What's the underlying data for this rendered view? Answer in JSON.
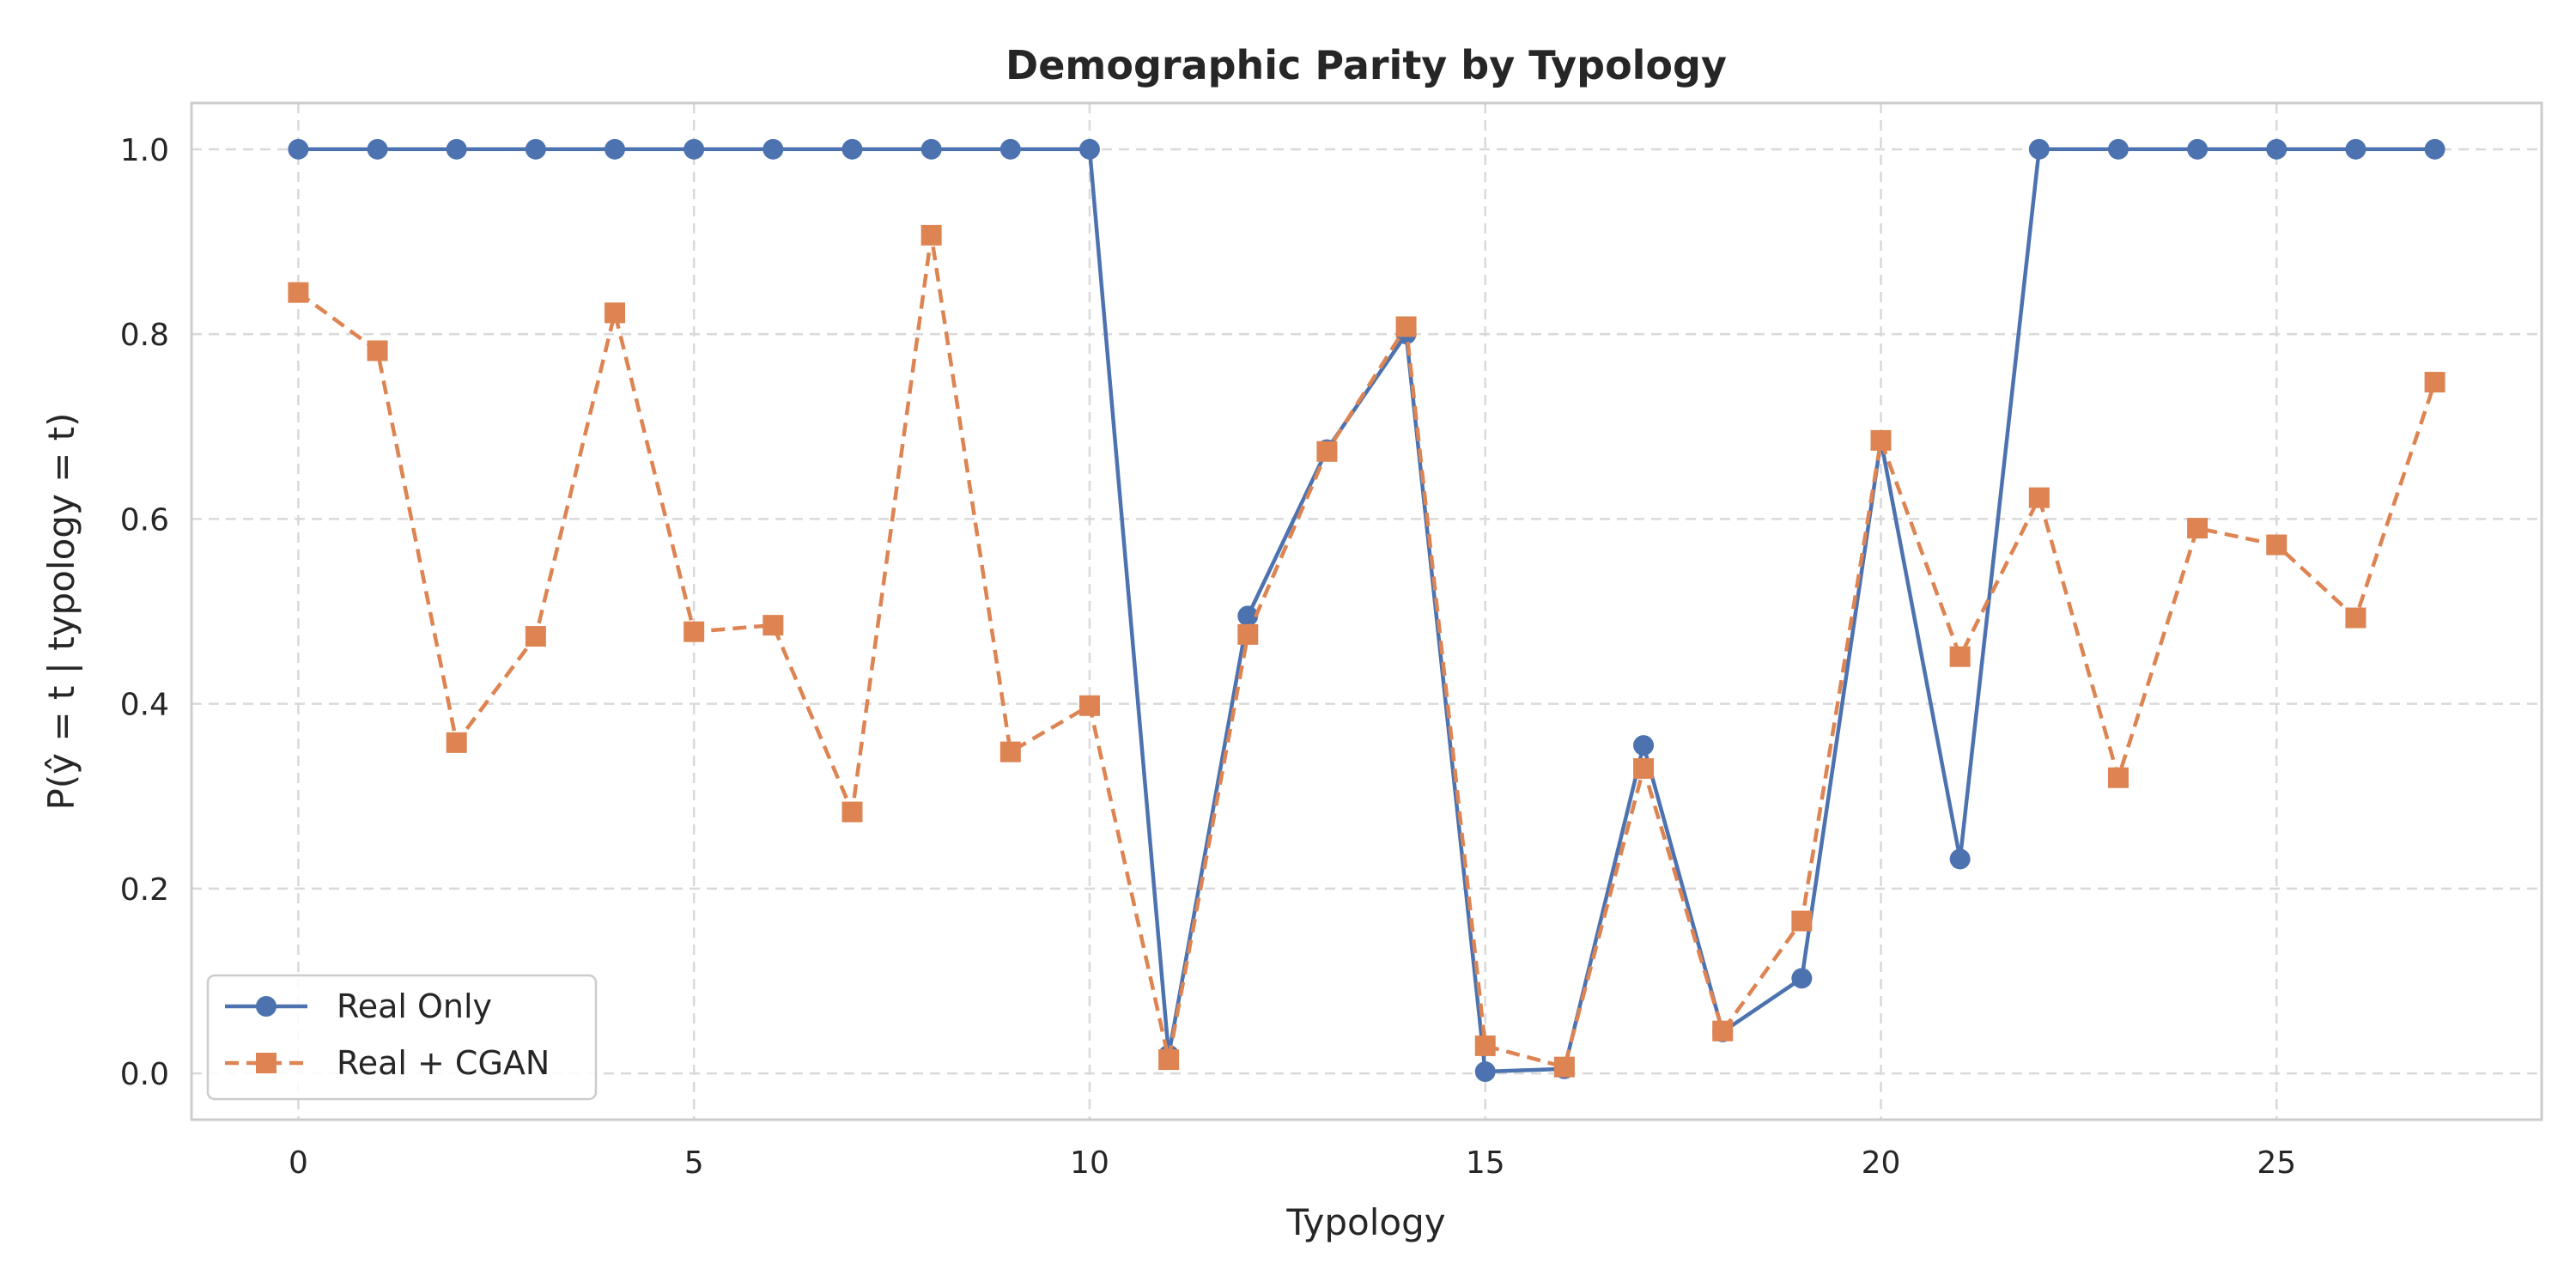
{
  "chart_data": {
    "type": "line",
    "title": "Demographic Parity by Typology",
    "xlabel": "Typology",
    "ylabel": "P(ŷ = t | typology = t)",
    "xlim": [
      -1.35,
      28.35
    ],
    "ylim": [
      -0.05,
      1.05
    ],
    "xticks": [
      0,
      5,
      10,
      15,
      20,
      25
    ],
    "yticks": [
      0.0,
      0.2,
      0.4,
      0.6,
      0.8,
      1.0
    ],
    "grid": true,
    "legend_position": "lower-left",
    "x": [
      0,
      1,
      2,
      3,
      4,
      5,
      6,
      7,
      8,
      9,
      10,
      11,
      12,
      13,
      14,
      15,
      16,
      17,
      18,
      19,
      20,
      21,
      22,
      23,
      24,
      25,
      26,
      27
    ],
    "series": [
      {
        "name": "Real Only",
        "color": "#4c72b0",
        "marker": "circle",
        "linestyle": "solid",
        "values": [
          1.0,
          1.0,
          1.0,
          1.0,
          1.0,
          1.0,
          1.0,
          1.0,
          1.0,
          1.0,
          1.0,
          0.02,
          0.495,
          0.675,
          0.8,
          0.002,
          0.005,
          0.355,
          0.045,
          0.103,
          0.685,
          0.232,
          1.0,
          1.0,
          1.0,
          1.0,
          1.0,
          1.0
        ]
      },
      {
        "name": "Real + CGAN",
        "color": "#dd8452",
        "marker": "square",
        "linestyle": "dashed",
        "values": [
          0.845,
          0.782,
          0.358,
          0.473,
          0.823,
          0.478,
          0.485,
          0.283,
          0.907,
          0.348,
          0.398,
          0.015,
          0.475,
          0.673,
          0.808,
          0.03,
          0.007,
          0.33,
          0.046,
          0.165,
          0.685,
          0.451,
          0.623,
          0.32,
          0.59,
          0.572,
          0.493,
          0.748
        ]
      }
    ]
  }
}
